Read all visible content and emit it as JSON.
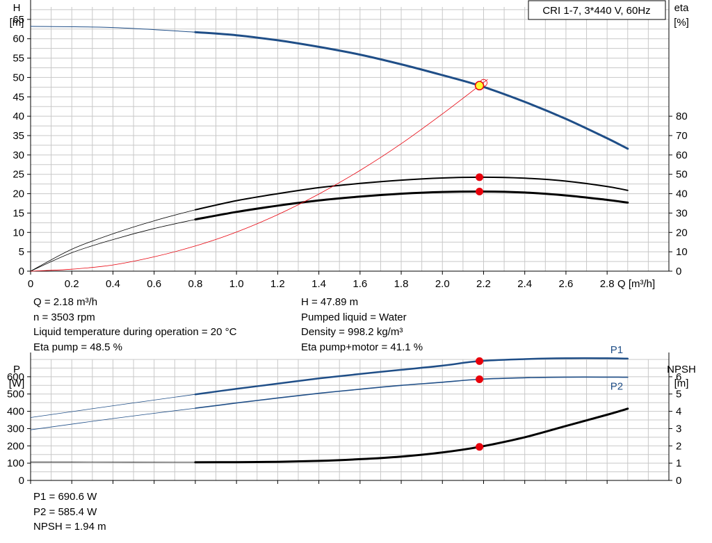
{
  "legend_box": "CRI 1-7, 3*440 V, 60Hz",
  "operating_point": {
    "q": "Q = 2.18 m³/h",
    "n": "n = 3503 rpm",
    "liquid_temp": "Liquid temperature during operation = 20 °C",
    "eta_pump": "Eta pump = 48.5 %",
    "h": "H = 47.89 m",
    "pumped_liquid": "Pumped liquid = Water",
    "density": "Density = 998.2 kg/m³",
    "eta_pump_motor": "Eta pump+motor = 41.1 %"
  },
  "power_readout": {
    "p1": "P1 = 690.6 W",
    "p2": "P2 = 585.4 W",
    "npsh": "NPSH = 1.94 m"
  },
  "colors": {
    "dark_blue": "#1f4e87",
    "black": "#000000",
    "red": "#e8000b",
    "grid": "#c8c8c8",
    "marker_yellow": "#ffff33"
  },
  "chart_data": [
    {
      "type": "line",
      "x_axis": {
        "label": "Q [m³/h]",
        "range": [
          0,
          3.1
        ],
        "ticks": [
          "0",
          "0.2",
          "0.4",
          "0.6",
          "0.8",
          "1.0",
          "1.2",
          "1.4",
          "1.6",
          "1.8",
          "2.0",
          "2.2",
          "2.4",
          "2.6",
          "2.8"
        ],
        "tick_values": [
          0,
          0.2,
          0.4,
          0.6,
          0.8,
          1.0,
          1.2,
          1.4,
          1.6,
          1.8,
          2.0,
          2.2,
          2.4,
          2.6,
          2.8
        ]
      },
      "y_left": {
        "label_line1": "H",
        "label_line2": "[m]",
        "range": [
          0,
          70
        ],
        "ticks": [
          "0",
          "5",
          "10",
          "15",
          "20",
          "25",
          "30",
          "35",
          "40",
          "45",
          "50",
          "55",
          "60",
          "65"
        ],
        "tick_values": [
          0,
          5,
          10,
          15,
          20,
          25,
          30,
          35,
          40,
          45,
          50,
          55,
          60,
          65
        ]
      },
      "y_right": {
        "label_line1": "eta",
        "label_line2": "[%]",
        "range": [
          0,
          140
        ],
        "ticks": [
          "0",
          "10",
          "20",
          "30",
          "40",
          "50",
          "60",
          "70",
          "80"
        ],
        "tick_values": [
          0,
          10,
          20,
          30,
          40,
          50,
          60,
          70,
          80
        ]
      },
      "grid": true,
      "series": [
        {
          "id": "head",
          "axis": "left",
          "color": "#1f4e87",
          "x": [
            0,
            0.4,
            0.8,
            1.0,
            1.2,
            1.4,
            1.6,
            1.8,
            2.0,
            2.18,
            2.4,
            2.6,
            2.8,
            2.9
          ],
          "y": [
            63.2,
            62.9,
            61.7,
            60.9,
            59.6,
            57.9,
            55.9,
            53.4,
            50.6,
            47.9,
            43.7,
            39.3,
            34.3,
            31.6
          ]
        },
        {
          "id": "eta-pump",
          "axis": "right",
          "color": "#000000",
          "x": [
            0,
            0.2,
            0.4,
            0.6,
            0.8,
            1.0,
            1.2,
            1.4,
            1.6,
            1.8,
            2.0,
            2.2,
            2.4,
            2.6,
            2.8,
            2.9
          ],
          "y": [
            0,
            11.3,
            19.3,
            26.0,
            31.7,
            36.4,
            40.0,
            43.1,
            45.3,
            47.0,
            48.1,
            48.5,
            48.0,
            46.5,
            43.7,
            41.7
          ]
        },
        {
          "id": "eta-pump-motor",
          "axis": "right",
          "color": "#000000",
          "x": [
            0,
            0.2,
            0.4,
            0.6,
            0.8,
            1.0,
            1.2,
            1.4,
            1.6,
            1.8,
            2.0,
            2.2,
            2.4,
            2.6,
            2.8,
            2.9
          ],
          "y": [
            0,
            9.5,
            16.3,
            22.0,
            26.7,
            30.6,
            33.8,
            36.5,
            38.5,
            40.0,
            40.9,
            41.1,
            40.6,
            39.1,
            36.8,
            35.4
          ]
        },
        {
          "id": "system-curve",
          "axis": "left",
          "color": "#e8000b",
          "x": [
            0,
            0.2,
            0.4,
            0.6,
            0.8,
            1.0,
            1.2,
            1.4,
            1.6,
            1.8,
            2.0,
            2.18,
            2.22
          ],
          "y": [
            0,
            0.5,
            1.6,
            3.7,
            6.5,
            10.1,
            14.6,
            19.9,
            26.0,
            32.9,
            40.6,
            47.9,
            49.5
          ]
        }
      ],
      "markers": [
        {
          "x": 2.18,
          "y": 47.89,
          "axis": "left",
          "color": "#ffff33"
        },
        {
          "x": 2.18,
          "y": 48.5,
          "axis": "right",
          "color": "#e8000b"
        },
        {
          "x": 2.18,
          "y": 41.1,
          "axis": "right",
          "color": "#e8000b"
        }
      ]
    },
    {
      "type": "line",
      "x_axis": {
        "range": [
          0,
          3.1
        ],
        "tick_values": [
          0,
          0.2,
          0.4,
          0.6,
          0.8,
          1.0,
          1.2,
          1.4,
          1.6,
          1.8,
          2.0,
          2.2,
          2.4,
          2.6,
          2.8
        ]
      },
      "y_left": {
        "label_line1": "P",
        "label_line2": "[W]",
        "range": [
          0,
          700
        ],
        "ticks": [
          "0",
          "100",
          "200",
          "300",
          "400",
          "500",
          "600"
        ],
        "tick_values": [
          0,
          100,
          200,
          300,
          400,
          500,
          600
        ]
      },
      "y_right": {
        "label_line1": "NPSH",
        "label_line2": "[m]",
        "range": [
          0,
          7
        ],
        "ticks": [
          "0",
          "1",
          "2",
          "3",
          "4",
          "5",
          "6"
        ],
        "tick_values": [
          0,
          1,
          2,
          3,
          4,
          5,
          6
        ]
      },
      "grid": true,
      "series": [
        {
          "id": "p1",
          "name": "P1",
          "axis": "left",
          "color": "#1f4e87",
          "x": [
            0,
            0.4,
            0.8,
            1.0,
            1.2,
            1.4,
            1.6,
            1.8,
            2.0,
            2.18,
            2.4,
            2.6,
            2.8,
            2.9
          ],
          "y": [
            364,
            432,
            498,
            530,
            560,
            590,
            616,
            640,
            664,
            690.6,
            702,
            707,
            707,
            705
          ]
        },
        {
          "id": "p2",
          "name": "P2",
          "axis": "left",
          "color": "#1f4e87",
          "x": [
            0,
            0.4,
            0.8,
            1.0,
            1.2,
            1.4,
            1.6,
            1.8,
            2.0,
            2.18,
            2.4,
            2.6,
            2.8,
            2.9
          ],
          "y": [
            293,
            358,
            418,
            448,
            477,
            504,
            528,
            550,
            568,
            585.4,
            594,
            598,
            598,
            597
          ]
        },
        {
          "id": "npsh",
          "axis": "right",
          "color": "#000000",
          "x": [
            0,
            0.2,
            0.8,
            1.0,
            1.2,
            1.4,
            1.6,
            1.8,
            2.0,
            2.18,
            2.4,
            2.6,
            2.8,
            2.9
          ],
          "y": [
            1.06,
            1.06,
            1.05,
            1.06,
            1.08,
            1.13,
            1.23,
            1.38,
            1.62,
            1.94,
            2.5,
            3.15,
            3.8,
            4.15
          ]
        }
      ],
      "markers": [
        {
          "x": 2.18,
          "y": 690.6,
          "axis": "left",
          "color": "#e8000b"
        },
        {
          "x": 2.18,
          "y": 585.4,
          "axis": "left",
          "color": "#e8000b"
        },
        {
          "x": 2.18,
          "y": 1.94,
          "axis": "right",
          "color": "#e8000b"
        }
      ]
    }
  ]
}
